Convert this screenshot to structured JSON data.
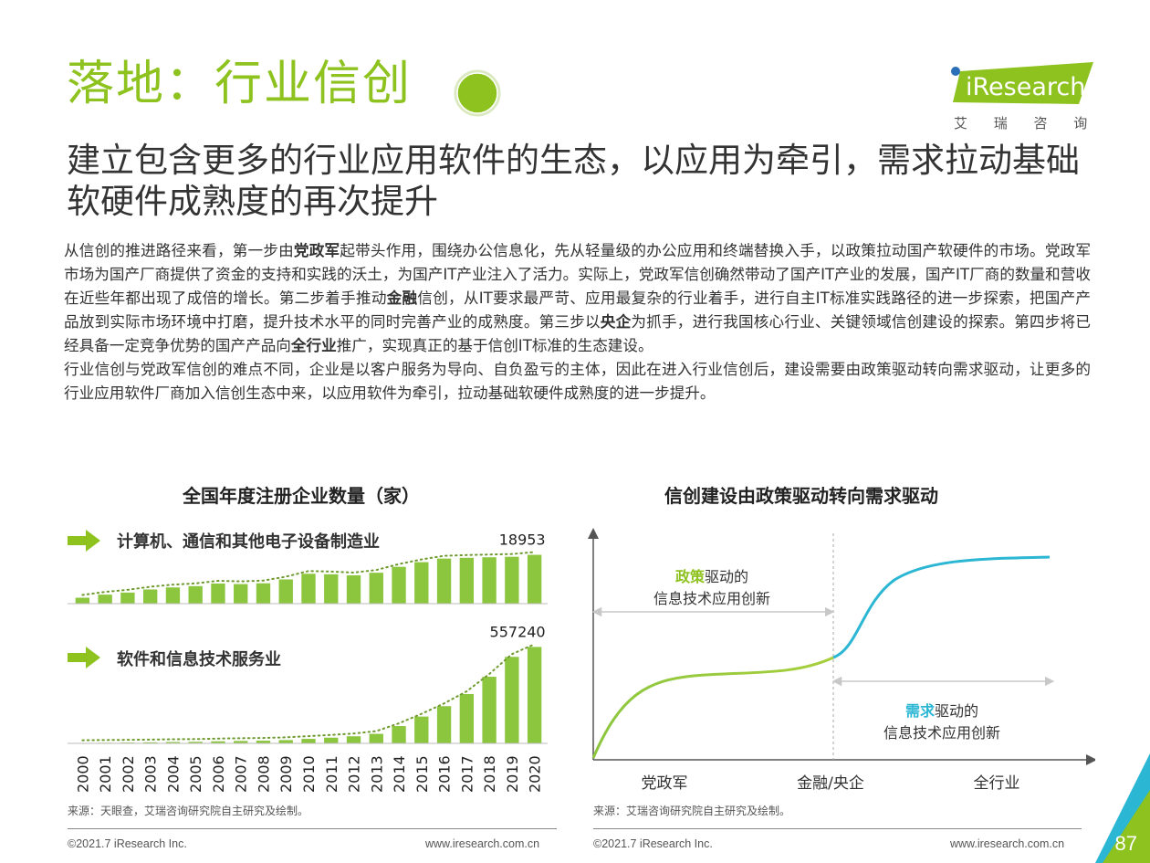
{
  "header": {
    "title": "落地：行业信创",
    "subtitle": "建立包含更多的行业应用软件的生态，以应用为牵引，需求拉动基础软硬件成熟度的再次提升"
  },
  "logo": {
    "brand": "iResearch",
    "tagline": "艾 瑞 咨 询"
  },
  "body": {
    "p1_a": "从信创的推进路径来看，第一步由",
    "p1_b1": "党政军",
    "p1_c": "起带头作用，围绕办公信息化，先从轻量级的办公应用和终端替换入手，以政策拉动国产软硬件的市场。党政军市场为国产厂商提供了资金的支持和实践的沃土，为国产IT产业注入了活力。实际上，党政军信创确然带动了国产IT产业的发展，国产IT厂商的数量和营收在近些年都出现了成倍的增长。第二步着手推动",
    "p1_b2": "金融",
    "p1_d": "信创，从IT要求最严苛、应用最复杂的行业着手，进行自主IT标准实践路径的进一步探索，把国产产品放到实际市场环境中打磨，提升技术水平的同时完善产业的成熟度。第三步以",
    "p1_b3": "央企",
    "p1_e": "为抓手，进行我国核心行业、关键领域信创建设的探索。第四步将已经具备一定竞争优势的国产产品向",
    "p1_b4": "全行业",
    "p1_f": "推广，实现真正的基于信创IT标准的生态建设。",
    "p2": "行业信创与党政军信创的难点不同，企业是以客户服务为导向、自负盈亏的主体，因此在进入行业信创后，建设需要由政策驱动转向需求驱动，让更多的行业应用软件厂商加入信创生态中来，以应用软件为牵引，拉动基础软硬件成熟度的进一步提升。"
  },
  "colors": {
    "green": "#8dc21f",
    "bar": "#8cc63f",
    "cyan": "#2bb6d4",
    "trend": "#6e9a2e"
  },
  "chart_data": [
    {
      "type": "bar",
      "title": "全国年度注册企业数量（家）",
      "categories": [
        "2000",
        "2001",
        "2002",
        "2003",
        "2004",
        "2005",
        "2006",
        "2007",
        "2008",
        "2009",
        "2010",
        "2011",
        "2012",
        "2013",
        "2014",
        "2015",
        "2016",
        "2017",
        "2018",
        "2019",
        "2020"
      ],
      "series": [
        {
          "name": "计算机、通信和其他电子设备制造业",
          "values": [
            2300,
            3500,
            4300,
            5500,
            6300,
            6800,
            7800,
            7600,
            7900,
            9400,
            11600,
            11400,
            11000,
            12000,
            14300,
            16100,
            17500,
            17800,
            18000,
            18200,
            18953
          ],
          "end_label": "18953",
          "ylim": [
            0,
            19500
          ]
        },
        {
          "name": "软件和信息技术服务业",
          "values": [
            2000,
            3500,
            4500,
            6000,
            8000,
            9000,
            12000,
            14000,
            15500,
            19000,
            26000,
            33000,
            41000,
            55000,
            100000,
            155000,
            215000,
            285000,
            385000,
            500000,
            557240
          ],
          "end_label": "557240",
          "ylim": [
            0,
            570000
          ]
        }
      ],
      "trendline": "dotted"
    },
    {
      "type": "line",
      "title": "信创建设由政策驱动转向需求驱动",
      "categories": [
        "党政军",
        "金融/央企",
        "全行业"
      ],
      "phases": [
        {
          "highlight": "政策",
          "rest": "驱动的",
          "line2": "信息技术应用创新"
        },
        {
          "highlight": "需求",
          "rest": "驱动的",
          "line2": "信息技术应用创新"
        }
      ],
      "axis": "no numeric scale"
    }
  ],
  "sources": {
    "left": "来源：天眼查，艾瑞咨询研究院自主研究及绘制。",
    "right": "来源：艾瑞咨询研究院自主研究及绘制。"
  },
  "footer": {
    "copyright": "©2021.7 iResearch Inc.",
    "website": "www.iresearch.com.cn",
    "page_number": "87"
  }
}
